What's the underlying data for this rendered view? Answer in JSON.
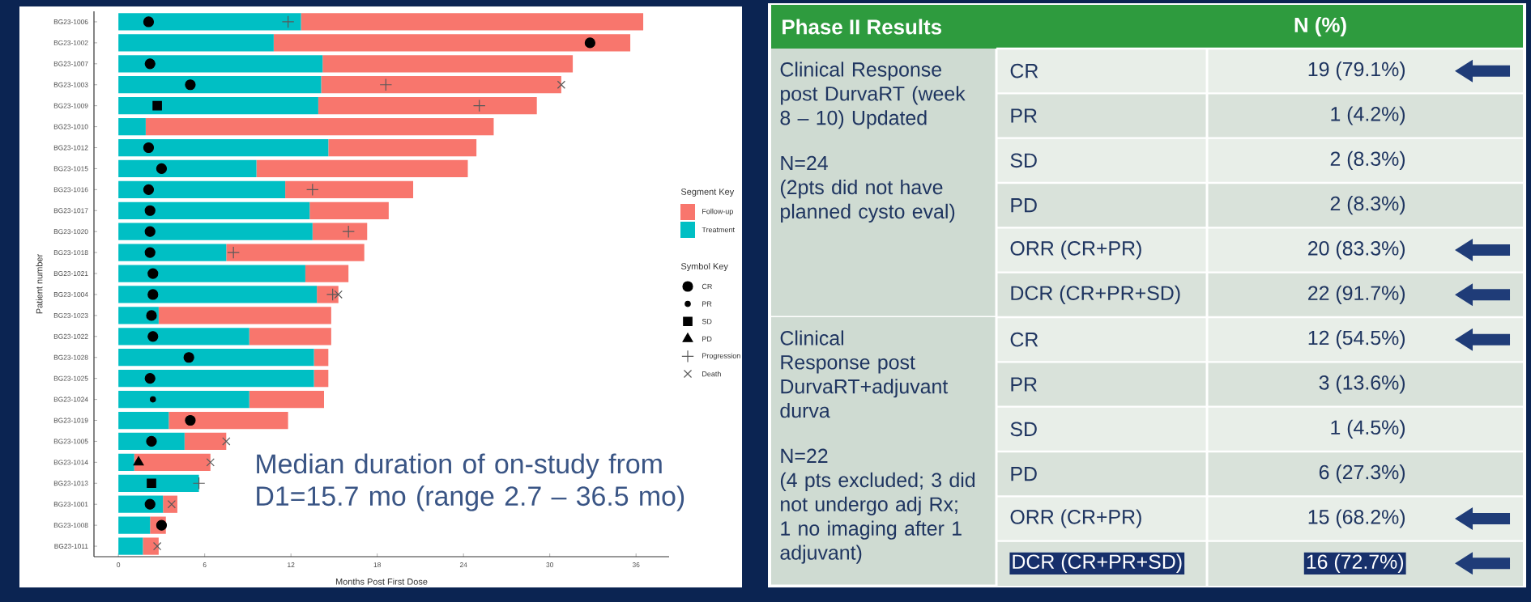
{
  "chart_data": [
    {
      "type": "bar",
      "orientation": "horizontal",
      "stacked": true,
      "xlabel": "Months Post First Dose",
      "ylabel": "Patient number",
      "categories": [
        "BG23-1006",
        "BG23-1002",
        "BG23-1007",
        "BG23-1003",
        "BG23-1009",
        "BG23-1010",
        "BG23-1012",
        "BG23-1015",
        "BG23-1016",
        "BG23-1017",
        "BG23-1020",
        "BG23-1018",
        "BG23-1021",
        "BG23-1004",
        "BG23-1023",
        "BG23-1022",
        "BG23-1028",
        "BG23-1025",
        "BG23-1024",
        "BG23-1019",
        "BG23-1005",
        "BG23-1014",
        "BG23-1013",
        "BG23-1001",
        "BG23-1008",
        "BG23-1011"
      ],
      "xlim": [
        -1.7,
        38.3
      ],
      "xticks": [
        0,
        6,
        12,
        18,
        24,
        30,
        36
      ],
      "legend": "right",
      "legend_title": [
        "Segment Key",
        "Symbol Key"
      ],
      "series": [
        {
          "name": "Treatment",
          "color": "#00bfc4",
          "values": [
            12.7,
            10.8,
            14.2,
            14.1,
            13.9,
            1.9,
            14.6,
            9.6,
            11.6,
            13.3,
            13.5,
            7.5,
            13.0,
            13.8,
            2.8,
            9.1,
            13.6,
            13.6,
            9.1,
            3.5,
            4.6,
            1.1,
            5.6,
            3.1,
            2.2,
            1.7
          ]
        },
        {
          "name": "Follow-up",
          "color": "#f8766d",
          "values": [
            23.8,
            24.8,
            17.4,
            16.7,
            15.2,
            24.2,
            10.3,
            14.7,
            8.9,
            5.5,
            3.8,
            9.6,
            3.0,
            1.5,
            12.0,
            5.7,
            1.0,
            1.0,
            5.2,
            8.3,
            2.9,
            5.3,
            0,
            1.0,
            1.1,
            1.1
          ]
        },
        {
          "name": "CR",
          "type": "scatter",
          "marker": "circle",
          "color": "#000000",
          "x": [
            "BG23-1006",
            "BG23-1002",
            "BG23-1007",
            "BG23-1003",
            "BG23-1012",
            "BG23-1015",
            "BG23-1016",
            "BG23-1017",
            "BG23-1020",
            "BG23-1018",
            "BG23-1021",
            "BG23-1004",
            "BG23-1023",
            "BG23-1022",
            "BG23-1028",
            "BG23-1025",
            "BG23-1019",
            "BG23-1005",
            "BG23-1001",
            "BG23-1008"
          ],
          "values": [
            2.1,
            32.8,
            2.2,
            5.0,
            2.1,
            3.0,
            2.1,
            2.2,
            2.2,
            2.2,
            2.4,
            2.4,
            2.3,
            2.4,
            4.9,
            2.2,
            5.0,
            2.3,
            2.2,
            3.0
          ]
        },
        {
          "name": "PR",
          "type": "scatter",
          "marker": "point",
          "color": "#000000",
          "x": [
            "BG23-1024"
          ],
          "values": [
            2.4
          ]
        },
        {
          "name": "SD",
          "type": "scatter",
          "marker": "square",
          "color": "#000000",
          "x": [
            "BG23-1009",
            "BG23-1013"
          ],
          "values": [
            2.7,
            2.3
          ]
        },
        {
          "name": "PD",
          "type": "scatter",
          "marker": "triangle",
          "color": "#000000",
          "x": [
            "BG23-1014"
          ],
          "values": [
            1.4
          ]
        },
        {
          "name": "Progression",
          "type": "scatter",
          "marker": "plus",
          "color": "#595959",
          "x": [
            "BG23-1006",
            "BG23-1003",
            "BG23-1009",
            "BG23-1016",
            "BG23-1020",
            "BG23-1018",
            "BG23-1004",
            "BG23-1013"
          ],
          "values": [
            11.8,
            18.6,
            25.1,
            13.5,
            16.0,
            8.0,
            14.9,
            5.6
          ]
        },
        {
          "name": "Death",
          "type": "scatter",
          "marker": "cross",
          "color": "#595959",
          "x": [
            "BG23-1003",
            "BG23-1004",
            "BG23-1005",
            "BG23-1014",
            "BG23-1001",
            "BG23-1011"
          ],
          "values": [
            30.8,
            15.3,
            7.5,
            6.4,
            3.7,
            2.7
          ]
        }
      ],
      "annotations": [
        "Median duration of on-study from D1=15.7 mo (range 2.7 – 36.5 mo)"
      ]
    },
    {
      "type": "other",
      "title": "Phase II Results",
      "y_categories": [
        "Clinical Response post DurvaRT (week 8 – 10) Updated",
        "Clinical Response post DurvaRT+adjuvant durva"
      ],
      "annotations": [
        "N (%)",
        "N=24",
        "(2pts did not have planned cysto eval)",
        "N=22",
        "(4 pts excluded; 3 did not undergo adj Rx; 1 no imaging after 1 adjuvant)"
      ],
      "categories": [
        "CR",
        "PR",
        "SD",
        "PD",
        "ORR (CR+PR)",
        "DCR (CR+PR+SD)",
        "CR",
        "PR",
        "SD",
        "PD",
        "ORR (CR+PR)",
        "DCR (CR+PR+SD)"
      ],
      "value_labels": [
        "19 (79.1%)",
        "1 (4.2%)",
        "2 (8.3%)",
        "2 (8.3%)",
        "20 (83.3%)",
        "22 (91.7%)",
        "12 (54.5%)",
        "3 (13.6%)",
        "1 (4.5%)",
        "6 (27.3%)",
        "15 (68.2%)",
        "16 (72.7%)"
      ]
    }
  ]
}
